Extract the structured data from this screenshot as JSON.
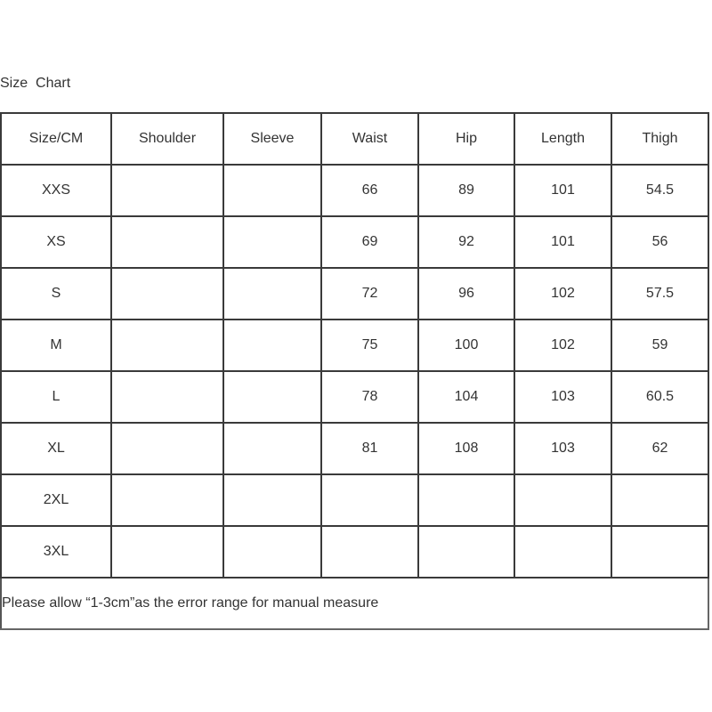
{
  "title": "Size  Chart",
  "headers": [
    "Size/CM",
    "Shoulder",
    "Sleeve",
    "Waist",
    "Hip",
    "Length",
    "Thigh"
  ],
  "rows": [
    [
      "XXS",
      "",
      "",
      "66",
      "89",
      "101",
      "54.5"
    ],
    [
      "XS",
      "",
      "",
      "69",
      "92",
      "101",
      "56"
    ],
    [
      "S",
      "",
      "",
      "72",
      "96",
      "102",
      "57.5"
    ],
    [
      "M",
      "",
      "",
      "75",
      "100",
      "102",
      "59"
    ],
    [
      "L",
      "",
      "",
      "78",
      "104",
      "103",
      "60.5"
    ],
    [
      "XL",
      "",
      "",
      "81",
      "108",
      "103",
      "62"
    ],
    [
      "2XL",
      "",
      "",
      "",
      "",
      "",
      ""
    ],
    [
      "3XL",
      "",
      "",
      "",
      "",
      "",
      ""
    ]
  ],
  "note": "Please allow “1-3cm”as the error range for manual measure"
}
